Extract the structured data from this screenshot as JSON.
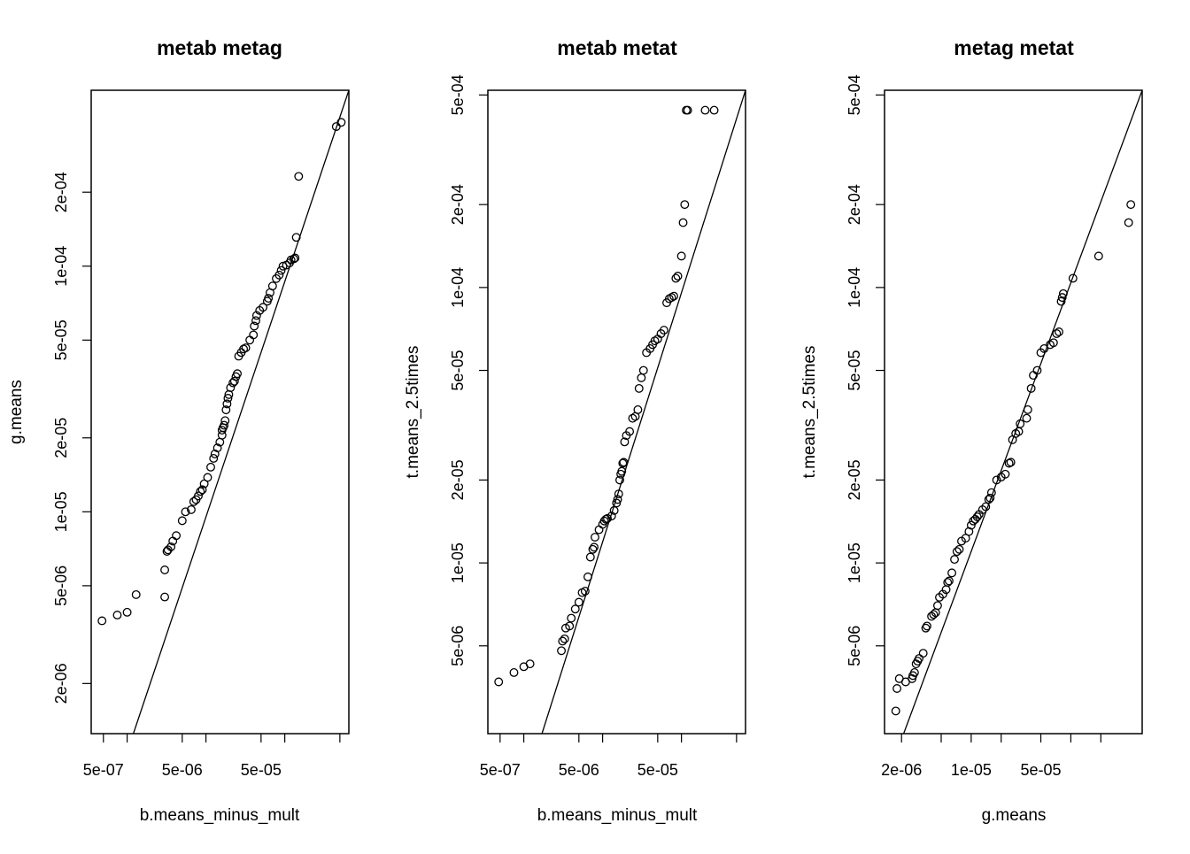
{
  "chart_data": [
    {
      "type": "scatter",
      "title": "metab metag",
      "xlabel": "b.means_minus_mult",
      "ylabel": "g.means",
      "log_x": true,
      "log_y": true,
      "xlim": [
        3.5e-07,
        0.00065
      ],
      "ylim": [
        1.25e-06,
        0.00052
      ],
      "x_ticks": [
        5e-07,
        1e-06,
        5e-06,
        1e-05,
        5e-05,
        0.0001,
        0.0005
      ],
      "x_tick_labels": [
        "5e-07",
        "",
        "5e-06",
        "",
        "5e-05",
        "",
        ""
      ],
      "y_ticks": [
        2e-06,
        5e-06,
        1e-05,
        2e-05,
        5e-05,
        0.0001,
        0.0002
      ],
      "y_tick_labels": [
        "2e-06",
        "5e-06",
        "1e-05",
        "2e-05",
        "5e-05",
        "1e-04",
        "2e-04"
      ],
      "line": {
        "x1": 1.2e-06,
        "y1": 1.25e-06,
        "x2": 0.00065,
        "y2": 0.00052
      },
      "x": [
        4.8e-07,
        7.5e-07,
        1e-06,
        1.3e-06,
        3e-06,
        3e-06,
        3.2e-06,
        3.3e-06,
        3.6e-06,
        3.8e-06,
        4.2e-06,
        5e-06,
        5.5e-06,
        6.5e-06,
        7e-06,
        7.5e-06,
        8e-06,
        8.5e-06,
        9e-06,
        9.5e-06,
        1.05e-05,
        1.15e-05,
        1.25e-05,
        1.3e-05,
        1.4e-05,
        1.5e-05,
        1.6e-05,
        1.6e-05,
        1.65e-05,
        1.7e-05,
        1.75e-05,
        1.8e-05,
        1.85e-05,
        1.9e-05,
        1.95e-05,
        2.05e-05,
        2.2e-05,
        2.3e-05,
        2.4e-05,
        2.5e-05,
        2.6e-05,
        2.8e-05,
        3e-05,
        3.2e-05,
        3.6e-05,
        4e-05,
        4.1e-05,
        4.3e-05,
        4.4e-05,
        4.8e-05,
        5.3e-05,
        6e-05,
        6.2e-05,
        6.5e-05,
        7e-05,
        7.8e-05,
        8.5e-05,
        9e-05,
        9.5e-05,
        0.000105,
        0.000115,
        0.00012,
        0.00013,
        0.000135,
        0.00014,
        0.00015,
        0.00045,
        0.00052
      ],
      "y": [
        3.6e-06,
        3.8e-06,
        3.9e-06,
        4.6e-06,
        4.5e-06,
        5.8e-06,
        6.9e-06,
        7e-06,
        7.2e-06,
        7.6e-06,
        8e-06,
        9.2e-06,
        1e-05,
        1.02e-05,
        1.1e-05,
        1.12e-05,
        1.16e-05,
        1.21e-05,
        1.23e-05,
        1.3e-05,
        1.38e-05,
        1.52e-05,
        1.65e-05,
        1.72e-05,
        1.82e-05,
        1.92e-05,
        2.15e-05,
        2.05e-05,
        2.2e-05,
        2.25e-05,
        2.35e-05,
        2.6e-05,
        2.75e-05,
        2.9e-05,
        3e-05,
        3.2e-05,
        3.35e-05,
        3.4e-05,
        3.55e-05,
        3.65e-05,
        4.3e-05,
        4.45e-05,
        4.6e-05,
        4.65e-05,
        5e-05,
        5.25e-05,
        5.7e-05,
        6e-05,
        6.3e-05,
        6.6e-05,
        6.8e-05,
        7.2e-05,
        7.4e-05,
        7.8e-05,
        8.3e-05,
        8.9e-05,
        9.2e-05,
        9.6e-05,
        0.0001,
        0.000101,
        0.000103,
        0.000106,
        0.000107,
        0.000108,
        0.000131,
        0.000232,
        0.00037,
        0.000385
      ]
    },
    {
      "type": "scatter",
      "title": "metab metat",
      "xlabel": "b.means_minus_mult",
      "ylabel": "t.means_2.5times",
      "log_x": true,
      "log_y": true,
      "xlim": [
        3.5e-07,
        0.00065
      ],
      "ylim": [
        2.4e-06,
        0.00052
      ],
      "x_ticks": [
        5e-07,
        1e-06,
        5e-06,
        1e-05,
        5e-05,
        0.0001,
        0.0005
      ],
      "x_tick_labels": [
        "5e-07",
        "",
        "5e-06",
        "",
        "5e-05",
        "",
        ""
      ],
      "y_ticks": [
        5e-06,
        1e-05,
        2e-05,
        5e-05,
        0.0001,
        0.0002,
        0.0005
      ],
      "y_tick_labels": [
        "5e-06",
        "1e-05",
        "2e-05",
        "5e-05",
        "1e-04",
        "2e-04",
        "5e-04"
      ],
      "line": {
        "x1": 1.7e-06,
        "y1": 2.4e-06,
        "x2": 0.00065,
        "y2": 0.00052
      },
      "x": [
        4.8e-07,
        7.5e-07,
        1e-06,
        1.2e-06,
        3e-06,
        3.1e-06,
        3.3e-06,
        3.4e-06,
        3.8e-06,
        4e-06,
        4.5e-06,
        5e-06,
        5.5e-06,
        6e-06,
        6.5e-06,
        7e-06,
        7.5e-06,
        7.8e-06,
        8e-06,
        9e-06,
        1e-05,
        1.05e-05,
        1.1e-05,
        1.15e-05,
        1.3e-05,
        1.4e-05,
        1.5e-05,
        1.55e-05,
        1.6e-05,
        1.65e-05,
        1.7e-05,
        1.75e-05,
        1.8e-05,
        1.85e-05,
        1.9e-05,
        2e-05,
        2.2e-05,
        2.4e-05,
        2.6e-05,
        2.8e-05,
        2.9e-05,
        3.1e-05,
        3.3e-05,
        3.6e-05,
        4e-05,
        4.3e-05,
        4.6e-05,
        5e-05,
        5.5e-05,
        6e-05,
        6.5e-05,
        7e-05,
        7.5e-05,
        8e-05,
        8.5e-05,
        9e-05,
        0.0001,
        0.000105,
        0.00011,
        0.000115,
        0.00012,
        0.0002,
        0.00026
      ],
      "y": [
        3.7e-06,
        4e-06,
        4.2e-06,
        4.3e-06,
        4.8e-06,
        5.2e-06,
        5.3e-06,
        5.8e-06,
        5.9e-06,
        6.3e-06,
        6.8e-06,
        7.2e-06,
        7.8e-06,
        7.9e-06,
        8.9e-06,
        1.05e-05,
        1.12e-05,
        1.14e-05,
        1.24e-05,
        1.32e-05,
        1.38e-05,
        1.42e-05,
        1.44e-05,
        1.45e-05,
        1.48e-05,
        1.55e-05,
        1.65e-05,
        1.7e-05,
        1.78e-05,
        2e-05,
        2.1e-05,
        2.15e-05,
        2.3e-05,
        2.32e-05,
        2.75e-05,
        2.9e-05,
        3e-05,
        3.35e-05,
        3.4e-05,
        3.6e-05,
        4.3e-05,
        4.7e-05,
        5e-05,
        5.8e-05,
        6e-05,
        6.2e-05,
        6.4e-05,
        6.5e-05,
        6.8e-05,
        7e-05,
        8.8e-05,
        9.1e-05,
        9.2e-05,
        9.3e-05,
        0.000108,
        0.00011,
        0.00013,
        0.000172,
        0.0002,
        0.00044,
        0.00044,
        0.00044,
        0.00044
      ],
      "note_removed": ""
    },
    {
      "type": "scatter",
      "title": "metag metat",
      "xlabel": "g.means",
      "ylabel": "t.means_2.5times",
      "log_x": true,
      "log_y": true,
      "xlim": [
        1.35e-06,
        0.00052
      ],
      "ylim": [
        2.4e-06,
        0.00052
      ],
      "x_ticks": [
        2e-06,
        5e-06,
        1e-05,
        2e-05,
        5e-05,
        0.0001,
        0.0002
      ],
      "x_tick_labels": [
        "2e-06",
        "",
        "1e-05",
        "",
        "5e-05",
        "",
        ""
      ],
      "y_ticks": [
        5e-06,
        1e-05,
        2e-05,
        5e-05,
        0.0001,
        0.0002,
        0.0005
      ],
      "y_tick_labels": [
        "5e-06",
        "1e-05",
        "2e-05",
        "5e-05",
        "1e-04",
        "2e-04",
        "5e-04"
      ],
      "line": {
        "x1": 2.1e-06,
        "y1": 2.4e-06,
        "x2": 0.00052,
        "y2": 0.00052
      },
      "x": [
        1.75e-06,
        1.8e-06,
        1.9e-06,
        2.2e-06,
        2.55e-06,
        2.6e-06,
        2.7e-06,
        2.8e-06,
        2.9e-06,
        3e-06,
        3.3e-06,
        3.5e-06,
        3.6e-06,
        4e-06,
        4.2e-06,
        4.4e-06,
        4.6e-06,
        4.8e-06,
        5.2e-06,
        5.6e-06,
        5.8e-06,
        6e-06,
        6.4e-06,
        6.8e-06,
        7.2e-06,
        7.6e-06,
        8e-06,
        8.8e-06,
        9.5e-06,
        1e-05,
        1.05e-05,
        1.1e-05,
        1.15e-05,
        1.2e-05,
        1.3e-05,
        1.4e-05,
        1.5e-05,
        1.55e-05,
        1.6e-05,
        1.8e-05,
        2e-05,
        2.2e-05,
        2.4e-05,
        2.5e-05,
        2.6e-05,
        2.8e-05,
        3e-05,
        3.1e-05,
        3.6e-05,
        3.7e-05,
        4e-05,
        4.2e-05,
        4.6e-05,
        5e-05,
        5.4e-05,
        6.2e-05,
        6.7e-05,
        7.2e-05,
        7.6e-05,
        8e-05,
        8.2e-05,
        8.4e-05,
        0.000105,
        0.00019,
        0.00038,
        0.0004
      ],
      "y": [
        2.9e-06,
        3.5e-06,
        3.8e-06,
        3.7e-06,
        3.8e-06,
        3.9e-06,
        4e-06,
        4.3e-06,
        4.4e-06,
        4.5e-06,
        4.7e-06,
        5.8e-06,
        5.9e-06,
        6.4e-06,
        6.5e-06,
        6.6e-06,
        7e-06,
        7.5e-06,
        7.7e-06,
        8e-06,
        8.5e-06,
        8.6e-06,
        9.2e-06,
        1.03e-05,
        1.1e-05,
        1.12e-05,
        1.2e-05,
        1.23e-05,
        1.3e-05,
        1.37e-05,
        1.42e-05,
        1.44e-05,
        1.47e-05,
        1.5e-05,
        1.56e-05,
        1.6e-05,
        1.7e-05,
        1.72e-05,
        1.8e-05,
        2e-05,
        2.05e-05,
        2.1e-05,
        2.3e-05,
        2.32e-05,
        2.8e-05,
        2.95e-05,
        3e-05,
        3.2e-05,
        3.35e-05,
        3.6e-05,
        4.3e-05,
        4.8e-05,
        5e-05,
        5.8e-05,
        6e-05,
        6.2e-05,
        6.3e-05,
        6.8e-05,
        6.9e-05,
        8.9e-05,
        9.2e-05,
        9.5e-05,
        0.000108,
        0.00013,
        0.000172,
        0.0002
      ]
    }
  ]
}
